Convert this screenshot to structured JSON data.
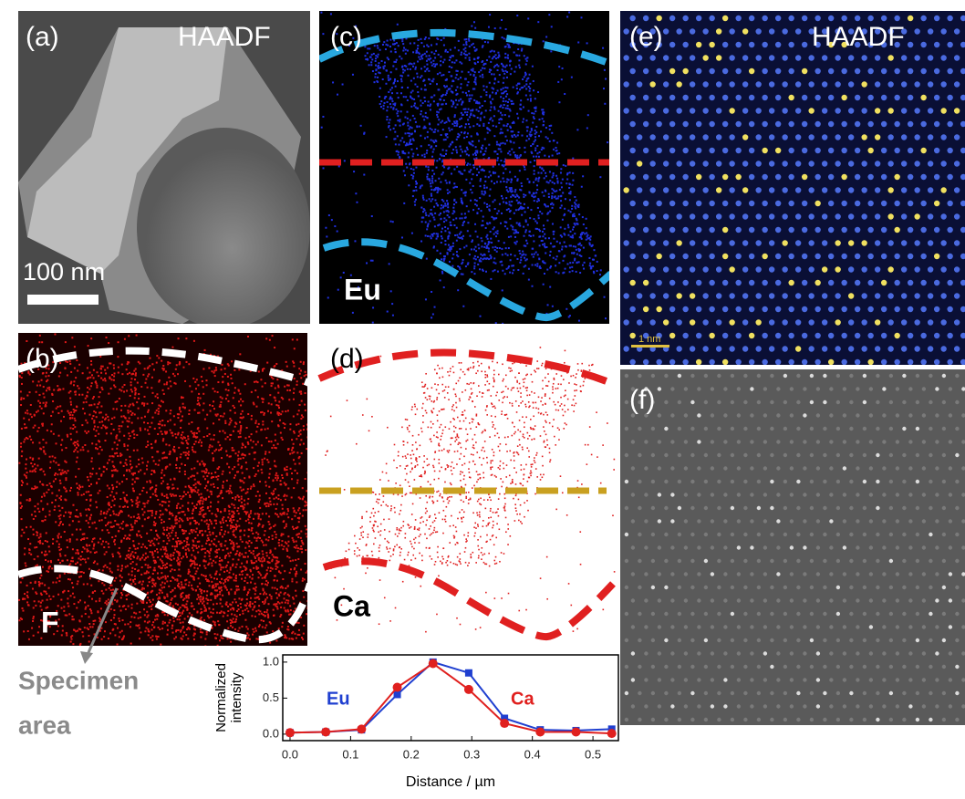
{
  "panels": {
    "a": {
      "label": "(a)",
      "title": "HAADF",
      "scale_bar": "100 nm"
    },
    "b": {
      "label": "(b)",
      "element": "F"
    },
    "c": {
      "label": "(c)",
      "element": "Eu"
    },
    "d": {
      "label": "(d)",
      "element": "Ca"
    },
    "e": {
      "label": "(e)",
      "title": "HAADF",
      "scale_bar": "1 nm"
    },
    "f": {
      "label": "(f)"
    }
  },
  "annotation": [
    "Specimen",
    "area"
  ],
  "chart_data": {
    "type": "line",
    "xlabel": "Distance / µm",
    "ylabel": [
      "Normalized",
      "intensity"
    ],
    "x": [
      0,
      0.059,
      0.118,
      0.177,
      0.236,
      0.295,
      0.354,
      0.413,
      0.472,
      0.531
    ],
    "series": [
      {
        "name": "Eu",
        "color": "#1f3fd0",
        "marker": "square",
        "values": [
          0.02,
          0.03,
          0.06,
          0.55,
          1.0,
          0.85,
          0.22,
          0.06,
          0.05,
          0.07
        ]
      },
      {
        "name": "Ca",
        "color": "#e0201e",
        "marker": "circle",
        "values": [
          0.02,
          0.03,
          0.07,
          0.65,
          0.98,
          0.62,
          0.15,
          0.03,
          0.03,
          0.01
        ]
      }
    ],
    "xlim": [
      -0.012,
      0.542
    ],
    "xticks": [
      {
        "value": 0,
        "label": "0.0"
      },
      0.1,
      0.2,
      0.3,
      0.4,
      0.5
    ],
    "ylim": [
      -0.09,
      1.1
    ],
    "yticks": [
      {
        "value": 0,
        "label": "0.0"
      },
      0.5,
      {
        "value": 1,
        "label": "1.0"
      }
    ]
  }
}
